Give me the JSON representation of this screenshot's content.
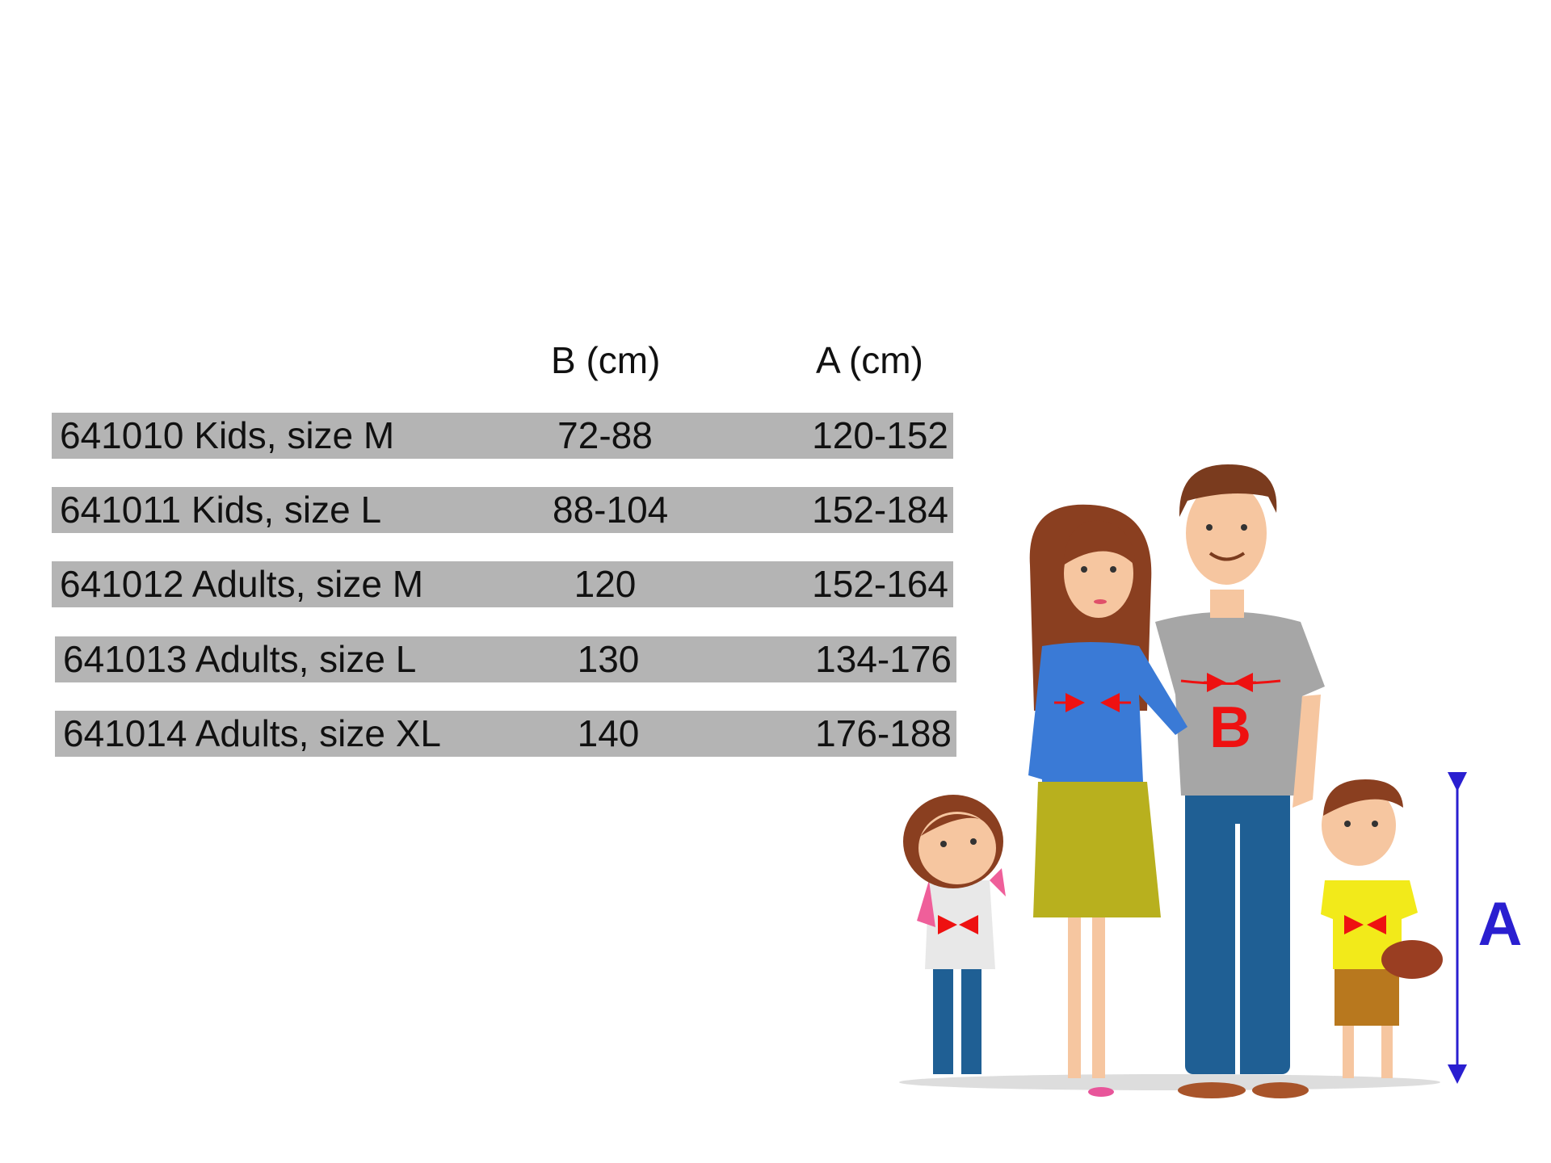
{
  "table": {
    "headers": {
      "b": "B (cm)",
      "a": "A (cm)"
    },
    "rows": [
      {
        "name": "641010 Kids, size M",
        "b": "72-88",
        "a": "120-152"
      },
      {
        "name": "641011 Kids, size L",
        "b": "88-104",
        "a": "152-184"
      },
      {
        "name": "641012 Adults, size M",
        "b": "120",
        "a": "152-164"
      },
      {
        "name": "641013 Adults, size L",
        "b": "130",
        "a": "134-176"
      },
      {
        "name": "641014 Adults, size XL",
        "b": "140",
        "a": "176-188"
      }
    ],
    "row_color": "#b4b4b4"
  },
  "illustration": {
    "label_b": "B",
    "label_a": "A",
    "label_b_color": "#ee1111",
    "label_a_color": "#2a1fd0"
  }
}
